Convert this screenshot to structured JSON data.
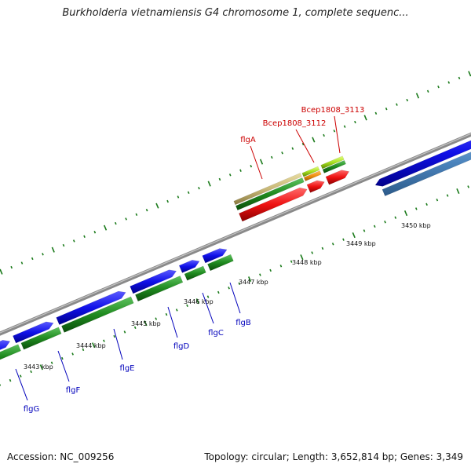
{
  "title": "Burkholderia vietnamiensis G4 chromosome 1, complete sequenc...",
  "footer": {
    "accession": "Accession: NC_009256",
    "summary": "Topology: circular; Length: 3,652,814 bp; Genes: 3,349"
  },
  "colors": {
    "forward_gene": "#1010e8",
    "reverse_gene": "#1f8a1f",
    "highlight_gene": "#ee1111",
    "reverse_gene_alt": "#4b84bd",
    "label_blue": "#0000bb",
    "label_red": "#cc0000",
    "backbone": "#8a8a8a",
    "tick": "#1a7a1a"
  },
  "scale_labels": [
    {
      "label": "3443 kbp"
    },
    {
      "label": "3444 kbp"
    },
    {
      "label": "3445 kbp"
    },
    {
      "label": "3446 kbp"
    },
    {
      "label": "3447 kbp"
    },
    {
      "label": "3448 kbp"
    },
    {
      "label": "3449 kbp"
    },
    {
      "label": "3450 kbp"
    }
  ],
  "gene_labels_lower": [
    {
      "name": "flgG"
    },
    {
      "name": "flgF"
    },
    {
      "name": "flgE"
    },
    {
      "name": "flgD"
    },
    {
      "name": "flgC"
    },
    {
      "name": "flgB"
    }
  ],
  "gene_labels_upper": [
    {
      "name": "flgA"
    },
    {
      "name": "Bcep1808_3112"
    },
    {
      "name": "Bcep1808_3113"
    }
  ]
}
